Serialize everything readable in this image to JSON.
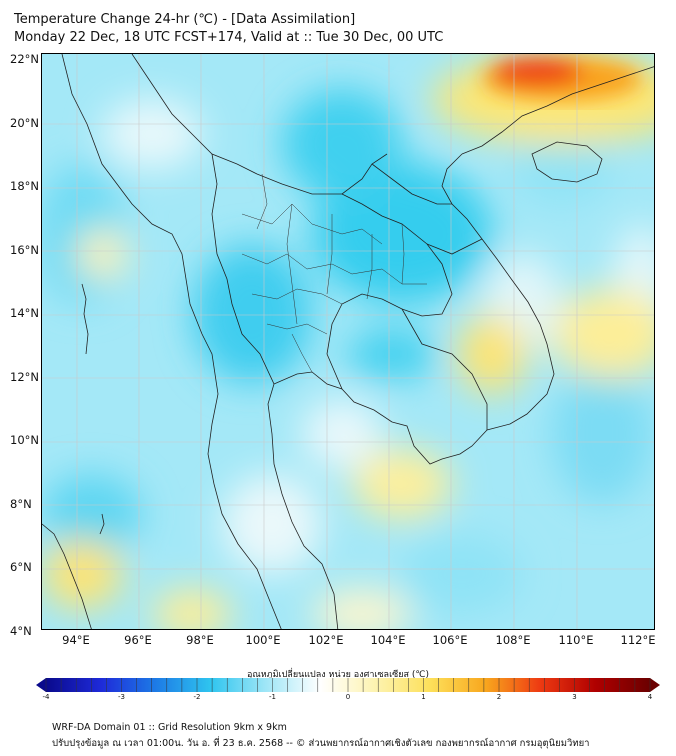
{
  "header": {
    "title": "Temperature Change 24-hr (℃) - [Data Assimilation]",
    "subtitle": "Monday 22 Dec, 18 UTC FCST+174, Valid at :: Tue 30 Dec, 00 UTC"
  },
  "map": {
    "lat_labels": [
      "22°N",
      "20°N",
      "18°N",
      "16°N",
      "14°N",
      "12°N",
      "10°N",
      "8°N",
      "6°N",
      "4°N"
    ],
    "lon_labels": [
      "94°E",
      "96°E",
      "98°E",
      "100°E",
      "102°E",
      "104°E",
      "106°E",
      "108°E",
      "110°E",
      "112°E"
    ]
  },
  "colorbar": {
    "title": "อุณหภูมิเปลี่ยนแปลง หน่วย องศาเซลเซียส (℃)",
    "labels": [
      "-4",
      "-3",
      "-2",
      "-1",
      "0",
      "1",
      "2",
      "3",
      "4"
    ],
    "colors": [
      "#0a0a8c",
      "#1e2ad9",
      "#1d7be6",
      "#2fc5ef",
      "#9fe6f7",
      "#ffffff",
      "#fdf3b0",
      "#fde05a",
      "#f8a71e",
      "#ee3a12",
      "#b00000",
      "#6b0000"
    ]
  },
  "footer": {
    "line1": "WRF-DA Domain 01 :: Grid Resolution 9km x 9km",
    "line2": "ปรับปรุงข้อมูล ณ เวลา 01:00น. วัน อ. ที่ 23 ธ.ค. 2568 -- © ส่วนพยากรณ์อากาศเชิงตัวเลข กองพยากรณ์อากาศ กรมอุตุนิยมวิทยา"
  }
}
